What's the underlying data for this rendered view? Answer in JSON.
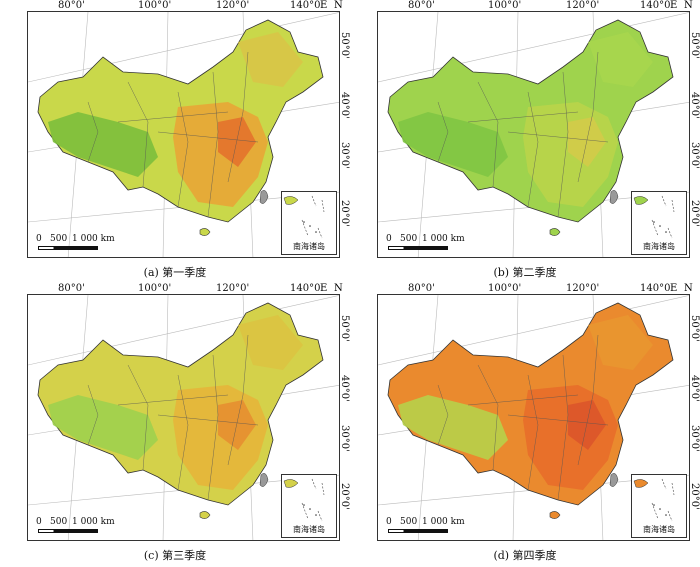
{
  "panels": [
    {
      "caption": "(a) 第一季度",
      "season": "q1",
      "palette": {
        "base": "#c9d84a",
        "west": "#7cbf3c",
        "east": "#e8a636",
        "hot": "#e46c2a",
        "north": "#d9c446"
      }
    },
    {
      "caption": "(b) 第二季度",
      "season": "q2",
      "palette": {
        "base": "#9fd34d",
        "west": "#7fc544",
        "east": "#b9d44a",
        "hot": "#d6c949",
        "north": "#a8d64e"
      }
    },
    {
      "caption": "(c) 第三季度",
      "season": "q3",
      "palette": {
        "base": "#d4d14a",
        "west": "#9fd04e",
        "east": "#e6b53a",
        "hot": "#e68a2f",
        "north": "#dcc341"
      }
    },
    {
      "caption": "(d) 第四季度",
      "season": "q4",
      "palette": {
        "base": "#ea8a2e",
        "west": "#b7d04a",
        "east": "#e86d2a",
        "hot": "#d9532a",
        "north": "#e9962f"
      }
    }
  ],
  "axis": {
    "lon_labels": [
      "80°0'",
      "100°0'",
      "120°0'",
      "140°0'"
    ],
    "lat_labels": [
      "20°0'",
      "30°0'",
      "40°0'",
      "50°0'"
    ],
    "east": "E",
    "north": "N"
  },
  "scale_bar": {
    "zero": "0",
    "mid": "500",
    "end": "1 000 km"
  },
  "inset_label": "南海诸岛"
}
